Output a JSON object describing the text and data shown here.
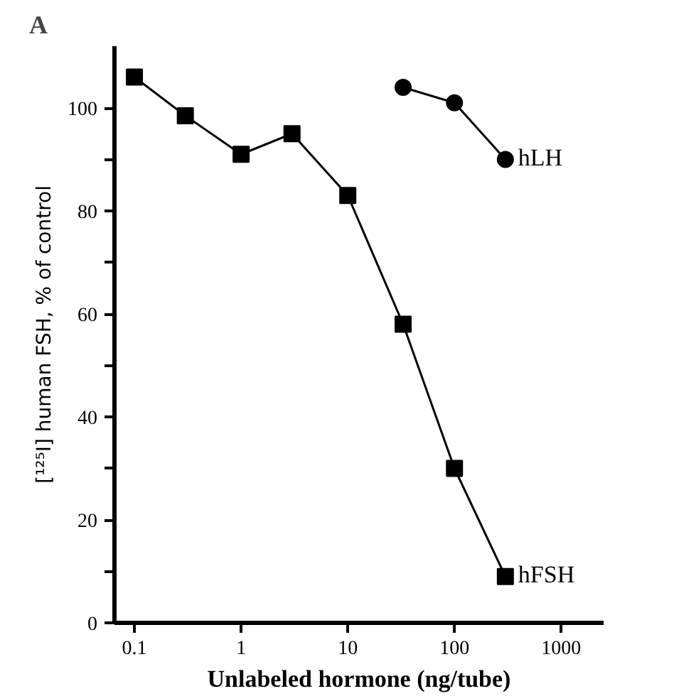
{
  "chart_data": {
    "type": "line",
    "title": "A",
    "xlabel": "Unlabeled hormone (ng/tube)",
    "ylabel": "[¹²⁵I] human FSH, % of control",
    "log": "x",
    "xlim": [
      0.065,
      2500
    ],
    "xticks": [
      0.1,
      1,
      10,
      100,
      1000
    ],
    "ylim": [
      0,
      112
    ],
    "yticks": [
      0,
      {
        "value": 10,
        "label": null
      },
      20,
      {
        "value": 30,
        "label": null
      },
      40,
      {
        "value": 50,
        "label": null
      },
      60,
      {
        "value": 70,
        "label": null
      },
      80,
      {
        "value": 90,
        "label": null
      },
      100
    ],
    "grid": false,
    "line_style": "solid",
    "series": [
      {
        "name": "hFSH",
        "color": "#000000",
        "marker": "square",
        "x": [
          0.1,
          0.3,
          1,
          3,
          10,
          33,
          100,
          300
        ],
        "values": [
          106,
          98.5,
          91,
          95,
          83,
          58,
          30,
          9
        ]
      },
      {
        "name": "hLH",
        "color": "#000000",
        "marker": "circle",
        "x": [
          33,
          100,
          300
        ],
        "values": [
          104,
          101,
          90
        ]
      }
    ]
  }
}
